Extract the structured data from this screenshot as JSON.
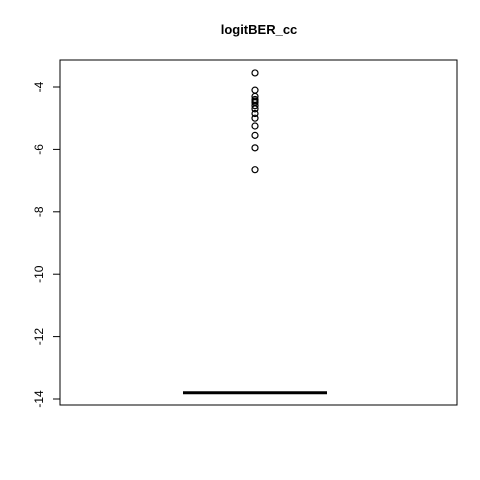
{
  "chart_data": {
    "type": "box",
    "title": "logitBER_cc",
    "xlabel": "",
    "ylabel": "",
    "ylim": [
      -14.2,
      -3.3
    ],
    "yticks": [
      -4,
      -6,
      -8,
      -10,
      -12,
      -14
    ],
    "box": {
      "min": -13.8,
      "q1": -13.8,
      "median": -13.8,
      "q3": -13.8,
      "max": -13.8
    },
    "outliers": [
      -3.55,
      -4.1,
      -4.3,
      -4.4,
      -4.45,
      -4.5,
      -4.6,
      -4.7,
      -4.85,
      -5.0,
      -5.25,
      -5.55,
      -5.95,
      -6.65
    ],
    "grid": false,
    "legend": "none"
  }
}
